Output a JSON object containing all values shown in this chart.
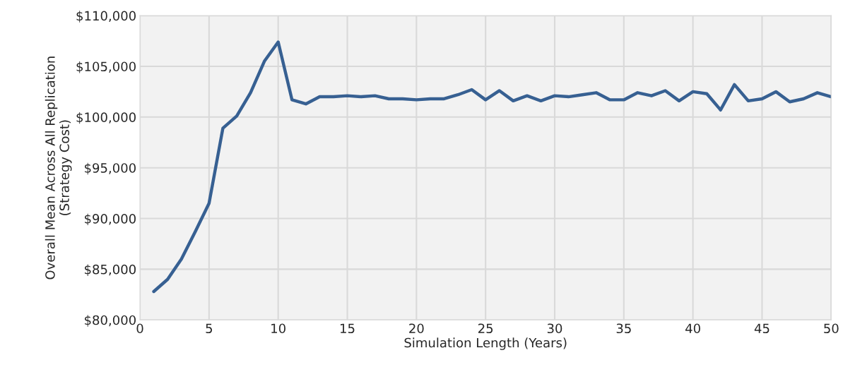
{
  "chart_data": {
    "type": "line",
    "xlabel": "Simulation Length (Years)",
    "ylabel": "Overall Mean Across All Replication\n(Strategy Cost)",
    "x": [
      1,
      2,
      3,
      4,
      5,
      6,
      7,
      8,
      9,
      10,
      11,
      12,
      13,
      14,
      15,
      16,
      17,
      18,
      19,
      20,
      21,
      22,
      23,
      24,
      25,
      26,
      27,
      28,
      29,
      30,
      31,
      32,
      33,
      34,
      35,
      36,
      37,
      38,
      39,
      40,
      41,
      42,
      43,
      44,
      45,
      46,
      47,
      48,
      49,
      50
    ],
    "series": [
      {
        "color": "#376092",
        "values": [
          82800,
          84000,
          86000,
          88700,
          91500,
          98900,
          100100,
          102400,
          105500,
          107400,
          101700,
          101300,
          102000,
          102000,
          102100,
          102000,
          102100,
          101800,
          101800,
          101700,
          101800,
          101800,
          102200,
          102700,
          101700,
          102600,
          101600,
          102100,
          101600,
          102100,
          102000,
          102200,
          102400,
          101700,
          101700,
          102400,
          102100,
          102600,
          101600,
          102500,
          102300,
          100700,
          103200,
          101600,
          101800,
          102500,
          101500,
          101800,
          102400,
          102000
        ]
      }
    ],
    "xlim": [
      0,
      50
    ],
    "xticks": [
      0,
      5,
      10,
      15,
      20,
      25,
      30,
      35,
      40,
      45,
      50
    ],
    "ylim": [
      80000,
      110000
    ],
    "yticks": [
      {
        "value": 80000,
        "label": "$80,000"
      },
      {
        "value": 85000,
        "label": "$85,000"
      },
      {
        "value": 90000,
        "label": "$90,000"
      },
      {
        "value": 95000,
        "label": "$95,000"
      },
      {
        "value": 100000,
        "label": "$100,000"
      },
      {
        "value": 105000,
        "label": "$105,000"
      },
      {
        "value": 110000,
        "label": "$110,000"
      }
    ],
    "grid": true,
    "marker": "none",
    "line_style": "solid"
  }
}
